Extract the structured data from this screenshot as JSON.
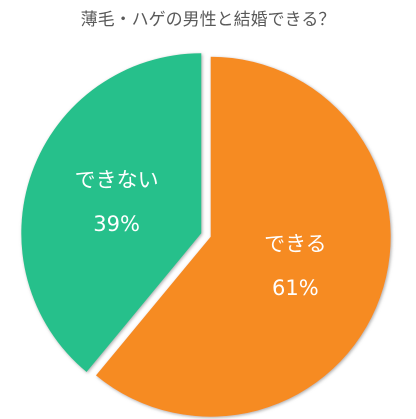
{
  "chart_data": {
    "type": "pie",
    "title": "薄毛・ハゲの男性と結婚できる？",
    "categories": [
      "できる",
      "できない"
    ],
    "values": [
      61,
      39
    ],
    "value_labels": [
      "61%",
      "39%"
    ],
    "colors": [
      "#f68b24",
      "#27c08b"
    ],
    "start_angle": "top",
    "direction": "clockwise",
    "exploded": true
  }
}
